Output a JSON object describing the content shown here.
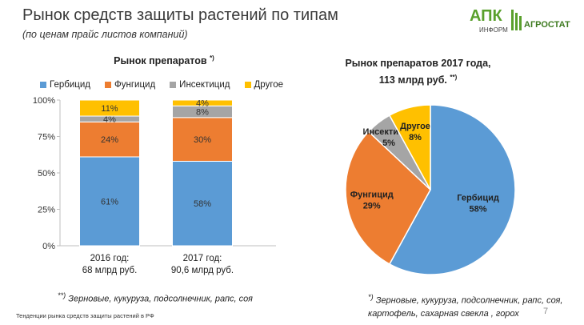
{
  "header": {
    "title": "Рынок средств защиты растений по типам",
    "subtitle": "(по ценам прайс листов компаний)",
    "logo_left": "АПК",
    "logo_left_sub": "ИНФОРМ",
    "logo_right": "АГРОСТАТ"
  },
  "colors": {
    "herbicide": "#5b9bd5",
    "fungicide": "#ed7d31",
    "insecticide": "#a5a5a5",
    "other": "#ffc000"
  },
  "chart_data": [
    {
      "type": "bar",
      "stacked": true,
      "title": "Рынок препаратов",
      "title_mark": "*)",
      "categories": [
        {
          "line1": "2016 год:",
          "line2": "68 млрд руб."
        },
        {
          "line1": "2017 год:",
          "line2": "90,6 млрд руб."
        }
      ],
      "series": [
        {
          "name": "Гербицид",
          "color": "#5b9bd5",
          "values": [
            61,
            58
          ],
          "labels": [
            "61%",
            "58%"
          ]
        },
        {
          "name": "Фунгицид",
          "color": "#ed7d31",
          "values": [
            24,
            30
          ],
          "labels": [
            "24%",
            "30%"
          ]
        },
        {
          "name": "Инсектицид",
          "color": "#a5a5a5",
          "values": [
            4,
            8
          ],
          "labels": [
            "4%",
            "8%"
          ]
        },
        {
          "name": "Другое",
          "color": "#ffc000",
          "values": [
            11,
            4
          ],
          "labels": [
            "11%",
            "4%"
          ]
        }
      ],
      "yticks": [
        "0%",
        "25%",
        "50%",
        "75%",
        "100%"
      ],
      "ylim": [
        0,
        100
      ],
      "legend": "top"
    },
    {
      "type": "pie",
      "title_line1": "Рынок препаратов 2017 года,",
      "title_line2": "113 млрд руб.",
      "title_mark": "**)",
      "slices": [
        {
          "name": "Гербицид",
          "value": 58,
          "label": "58%",
          "color": "#5b9bd5"
        },
        {
          "name": "Фунгицид",
          "value": 29,
          "label": "29%",
          "color": "#ed7d31"
        },
        {
          "name": "Инсектицид",
          "value": 5,
          "label": "5%",
          "color": "#a5a5a5"
        },
        {
          "name": "Другое",
          "value": 8,
          "label": "8%",
          "color": "#ffc000"
        }
      ]
    }
  ],
  "footnotes": {
    "left_mark": "**)",
    "left": "Зерновые, кукуруза, подсолнечник, рапс, соя",
    "right_mark": "*)",
    "right_line1": "Зерновые, кукуруза, подсолнечник, рапс, соя,",
    "right_line2": "картофель, сахарная свекла , горох"
  },
  "bottom_caption": "Тенденции рынка средств защиты растений в РФ",
  "page_number": "7"
}
